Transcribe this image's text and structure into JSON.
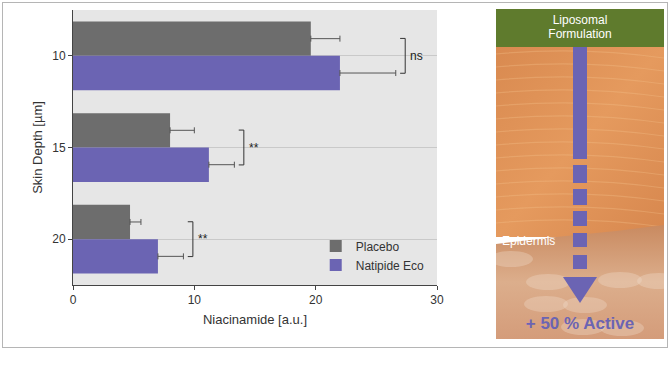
{
  "chart_data": {
    "type": "bar",
    "orientation": "horizontal",
    "x_label": "Niacinamide [a.u.]",
    "y_label": "Skin Depth [µm]",
    "categories": [
      "10",
      "15",
      "20"
    ],
    "series": [
      {
        "name": "Placebo",
        "color": "#6d6d6d",
        "values": [
          19.6,
          8.0,
          4.7
        ],
        "errors": [
          2.4,
          2.0,
          0.9
        ]
      },
      {
        "name": "Natipide Eco",
        "color": "#6b64b3",
        "values": [
          22.0,
          11.2,
          7.0
        ],
        "errors": [
          4.6,
          2.1,
          2.1
        ]
      }
    ],
    "significance": [
      "ns",
      "**",
      "**"
    ],
    "xlim": [
      0,
      30
    ],
    "xticks": [
      0,
      10,
      20,
      30
    ],
    "grid": true,
    "legend": "lower right"
  },
  "panel": {
    "header": "Liposomal Formulation",
    "layer": "Epidermis",
    "result": "+ 50 % Active"
  }
}
